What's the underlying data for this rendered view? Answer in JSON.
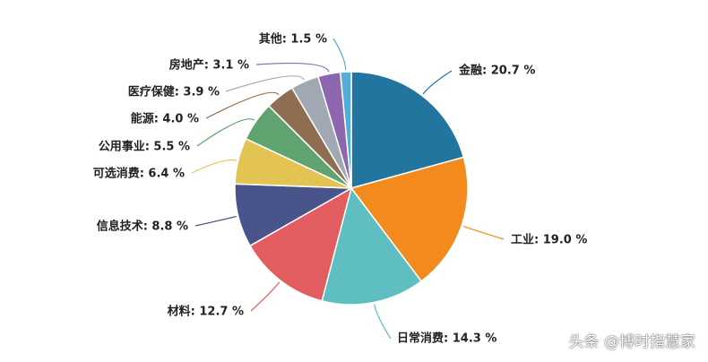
{
  "chart_data": {
    "type": "pie",
    "title": "",
    "label_suffix": " %",
    "slices": [
      {
        "label": "金融",
        "value": 20.7,
        "color": "#22759f"
      },
      {
        "label": "工业",
        "value": 19.0,
        "color": "#f28a1e"
      },
      {
        "label": "日常消费",
        "value": 14.3,
        "color": "#5fbfc0"
      },
      {
        "label": "材料",
        "value": 12.7,
        "color": "#e15d5f"
      },
      {
        "label": "信息技术",
        "value": 8.8,
        "color": "#49558a"
      },
      {
        "label": "可选消费",
        "value": 6.4,
        "color": "#e3c453"
      },
      {
        "label": "公用事业",
        "value": 5.5,
        "color": "#5fa370"
      },
      {
        "label": "能源",
        "value": 4.0,
        "color": "#8f6d51"
      },
      {
        "label": "医疗保健",
        "value": 3.9,
        "color": "#a0a9b3"
      },
      {
        "label": "房地产",
        "value": 3.1,
        "color": "#8c67ad"
      },
      {
        "label": "其他",
        "value": 1.5,
        "color": "#54acd9"
      }
    ]
  },
  "watermark": {
    "text": "头条 @博时指慧家"
  }
}
